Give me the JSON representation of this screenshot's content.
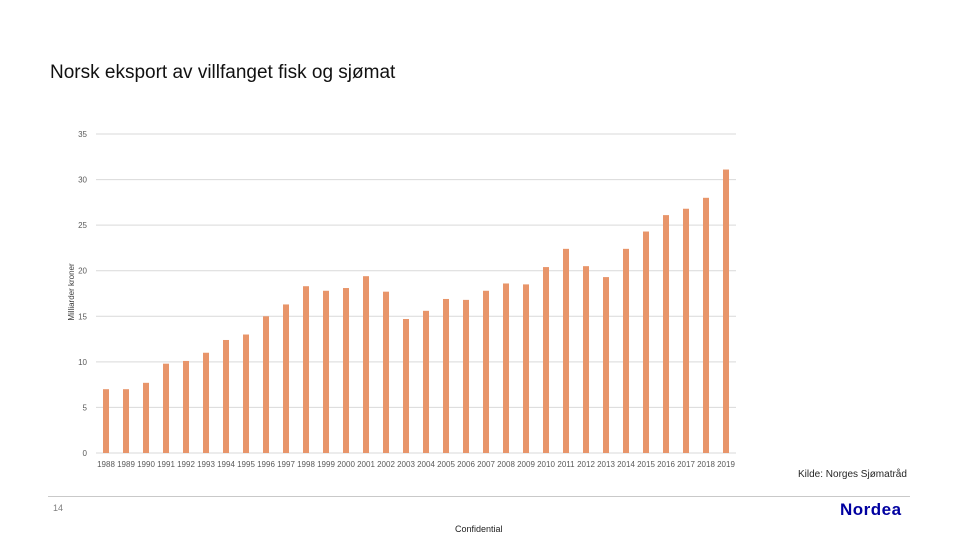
{
  "title": "Norsk eksport av villfanget fisk og sjømat",
  "source": "Kilde: Norges Sjømatråd",
  "page_number": "14",
  "confidential": "Confidential",
  "logo": "Nordea",
  "colors": {
    "bar": "#E8956A",
    "grid": "#D9D9D9",
    "logo": "#0000A0"
  },
  "chart_data": {
    "type": "bar",
    "ylabel": "Milliarder kroner",
    "xlabel": "",
    "ylim": [
      0,
      35
    ],
    "yticks": [
      0,
      5,
      10,
      15,
      20,
      25,
      30,
      35
    ],
    "grid": true,
    "categories": [
      "1988",
      "1989",
      "1990",
      "1991",
      "1992",
      "1993",
      "1994",
      "1995",
      "1996",
      "1997",
      "1998",
      "1999",
      "2000",
      "2001",
      "2002",
      "2003",
      "2004",
      "2005",
      "2006",
      "2007",
      "2008",
      "2009",
      "2010",
      "2011",
      "2012",
      "2013",
      "2014",
      "2015",
      "2016",
      "2017",
      "2018",
      "2019"
    ],
    "values": [
      7.0,
      7.0,
      7.7,
      9.8,
      10.1,
      11.0,
      12.4,
      13.0,
      15.0,
      16.3,
      18.3,
      17.8,
      18.1,
      19.4,
      17.7,
      14.7,
      15.6,
      16.9,
      16.8,
      17.8,
      18.6,
      18.5,
      20.4,
      22.4,
      20.5,
      19.3,
      22.4,
      24.3,
      26.1,
      26.8,
      28.0,
      31.1
    ]
  }
}
